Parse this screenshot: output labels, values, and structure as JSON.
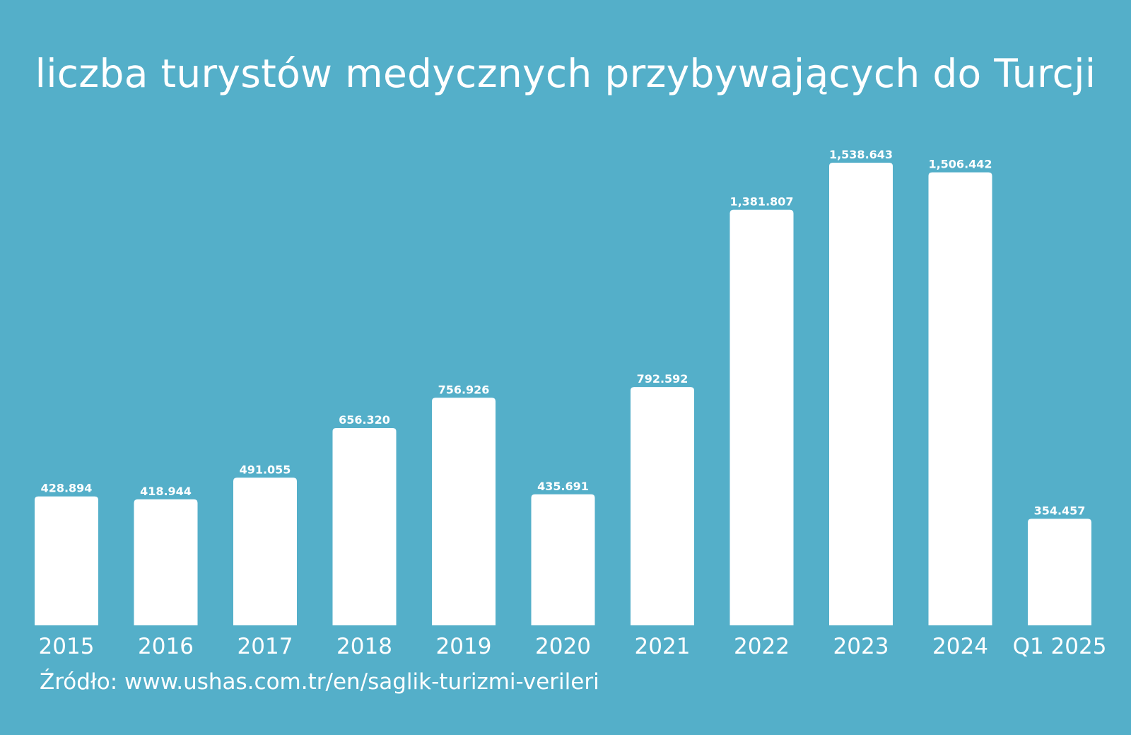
{
  "theme": {
    "background": "#54AFC9",
    "bar_color": "#FFFFFF",
    "text_color": "#FFFFFF"
  },
  "chart_data": {
    "type": "bar",
    "title": "liczba turystów medycznych przybywających do Turcji",
    "xlabel": "",
    "ylabel": "",
    "categories": [
      "2015",
      "2016",
      "2017",
      "2018",
      "2019",
      "2020",
      "2021",
      "2022",
      "2023",
      "2024",
      "Q1 2025"
    ],
    "values": [
      428894,
      418944,
      491055,
      656320,
      756926,
      435691,
      792592,
      1381807,
      1538643,
      1506442,
      354457
    ],
    "value_labels": [
      "428.894",
      "418.944",
      "491.055",
      "656.320",
      "756.926",
      "435.691",
      "792.592",
      "1,381.807",
      "1,538.643",
      "1,506.442",
      "354.457"
    ],
    "ylim": [
      0,
      1538643
    ],
    "grid": false,
    "legend": "none"
  },
  "source": "Źródło: www.ushas.com.tr/en/saglik-turizmi-verileri"
}
